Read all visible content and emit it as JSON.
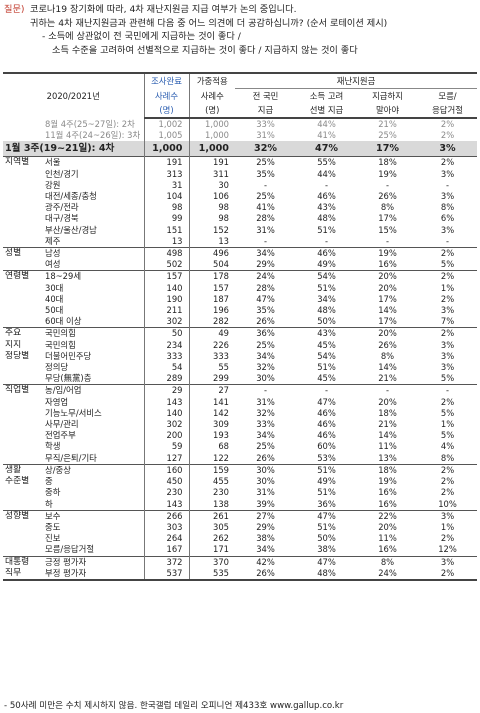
{
  "question": {
    "label": "질문)",
    "line1": "코로나19 장기화에 따라, 4차 재난지원금 지급 여부가 논의 중입니다.",
    "line2": "귀하는 4차 재난지원금과 관련해 다음 중 어느 의견에 더 공감하십니까? (순서 로테이션 제시)",
    "opt1": "- 소득에 상관없이 전 국민에게 지급하는 것이 좋다 /",
    "opt2": "소득 수준을 고려하여 선별적으로 지급하는 것이 좋다  /  지급하지 않는 것이 좋다"
  },
  "header": {
    "title": "2020/2021년",
    "col_n1": [
      "조사완료",
      "사례수",
      "(명)"
    ],
    "col_n2": [
      "가중적용",
      "사례수",
      "(명)"
    ],
    "group": "재난지원금",
    "col_all": [
      "전 국민",
      "지급"
    ],
    "col_sel": [
      "소득 고려",
      "선별 지급"
    ],
    "col_none": [
      "지급하지",
      "말아야"
    ],
    "col_dk": [
      "모름/",
      "응답거절"
    ]
  },
  "rows": [
    {
      "g": "",
      "s": "8월 4주(25~27일): 2차",
      "n1": "1,002",
      "n2": "1,000",
      "a": "33%",
      "b": "44%",
      "c": "21%",
      "d": "2%",
      "cls": "gray"
    },
    {
      "g": "",
      "s": "11월 4주(24~26일): 3차",
      "n1": "1,005",
      "n2": "1,000",
      "a": "31%",
      "b": "41%",
      "c": "25%",
      "d": "2%",
      "cls": "gray"
    },
    {
      "g": "1월 3주(19~21일): 4차",
      "s": "",
      "n1": "1,000",
      "n2": "1,000",
      "a": "32%",
      "b": "47%",
      "c": "17%",
      "d": "3%",
      "cls": "hl"
    },
    {
      "g": "지역별",
      "s": "서울",
      "n1": "191",
      "n2": "191",
      "a": "25%",
      "b": "55%",
      "c": "18%",
      "d": "2%",
      "cls": "sep"
    },
    {
      "g": "",
      "s": "인천/경기",
      "n1": "313",
      "n2": "311",
      "a": "35%",
      "b": "44%",
      "c": "19%",
      "d": "3%"
    },
    {
      "g": "",
      "s": "강원",
      "n1": "31",
      "n2": "30",
      "a": "-",
      "b": "-",
      "c": "-",
      "d": "-"
    },
    {
      "g": "",
      "s": "대전/세종/충청",
      "n1": "104",
      "n2": "106",
      "a": "25%",
      "b": "46%",
      "c": "26%",
      "d": "3%"
    },
    {
      "g": "",
      "s": "광주/전라",
      "n1": "98",
      "n2": "98",
      "a": "41%",
      "b": "43%",
      "c": "8%",
      "d": "8%"
    },
    {
      "g": "",
      "s": "대구/경북",
      "n1": "99",
      "n2": "98",
      "a": "28%",
      "b": "48%",
      "c": "17%",
      "d": "6%"
    },
    {
      "g": "",
      "s": "부산/울산/경남",
      "n1": "151",
      "n2": "152",
      "a": "31%",
      "b": "51%",
      "c": "15%",
      "d": "3%"
    },
    {
      "g": "",
      "s": "제주",
      "n1": "13",
      "n2": "13",
      "a": "-",
      "b": "-",
      "c": "-",
      "d": "-"
    },
    {
      "g": "성별",
      "s": "남성",
      "n1": "498",
      "n2": "496",
      "a": "34%",
      "b": "46%",
      "c": "19%",
      "d": "2%",
      "cls": "sep"
    },
    {
      "g": "",
      "s": "여성",
      "n1": "502",
      "n2": "504",
      "a": "29%",
      "b": "49%",
      "c": "16%",
      "d": "5%"
    },
    {
      "g": "연령별",
      "s": "18~29세",
      "n1": "157",
      "n2": "178",
      "a": "24%",
      "b": "54%",
      "c": "20%",
      "d": "2%",
      "cls": "sep"
    },
    {
      "g": "",
      "s": "30대",
      "n1": "140",
      "n2": "157",
      "a": "28%",
      "b": "51%",
      "c": "20%",
      "d": "1%"
    },
    {
      "g": "",
      "s": "40대",
      "n1": "190",
      "n2": "187",
      "a": "47%",
      "b": "34%",
      "c": "17%",
      "d": "2%"
    },
    {
      "g": "",
      "s": "50대",
      "n1": "211",
      "n2": "196",
      "a": "35%",
      "b": "48%",
      "c": "14%",
      "d": "3%"
    },
    {
      "g": "",
      "s": "60대 이상",
      "n1": "302",
      "n2": "282",
      "a": "26%",
      "b": "50%",
      "c": "17%",
      "d": "7%"
    },
    {
      "g": "주요",
      "s": "국민의힘",
      "n1": "50",
      "n2": "49",
      "a": "36%",
      "b": "43%",
      "c": "20%",
      "d": "2%",
      "cls": "sep"
    },
    {
      "g": "지지",
      "s": "국민의힘",
      "n1": "234",
      "n2": "226",
      "a": "25%",
      "b": "45%",
      "c": "26%",
      "d": "3%"
    },
    {
      "g": "정당별",
      "s": "더불어민주당",
      "n1": "333",
      "n2": "333",
      "a": "34%",
      "b": "54%",
      "c": "8%",
      "d": "3%"
    },
    {
      "g": "",
      "s": "정의당",
      "n1": "54",
      "n2": "55",
      "a": "32%",
      "b": "51%",
      "c": "14%",
      "d": "3%"
    },
    {
      "g": "",
      "s": "무당(無黨)층",
      "n1": "289",
      "n2": "299",
      "a": "30%",
      "b": "45%",
      "c": "21%",
      "d": "5%"
    },
    {
      "g": "직업별",
      "s": "농/임/어업",
      "n1": "29",
      "n2": "27",
      "a": "-",
      "b": "-",
      "c": "-",
      "d": "-",
      "cls": "sep"
    },
    {
      "g": "",
      "s": "자영업",
      "n1": "143",
      "n2": "141",
      "a": "31%",
      "b": "47%",
      "c": "20%",
      "d": "2%"
    },
    {
      "g": "",
      "s": "기능노무/서비스",
      "n1": "140",
      "n2": "142",
      "a": "32%",
      "b": "46%",
      "c": "18%",
      "d": "5%"
    },
    {
      "g": "",
      "s": "사무/관리",
      "n1": "302",
      "n2": "309",
      "a": "33%",
      "b": "46%",
      "c": "21%",
      "d": "1%"
    },
    {
      "g": "",
      "s": "전업주부",
      "n1": "200",
      "n2": "193",
      "a": "34%",
      "b": "46%",
      "c": "14%",
      "d": "5%"
    },
    {
      "g": "",
      "s": "학생",
      "n1": "59",
      "n2": "68",
      "a": "25%",
      "b": "60%",
      "c": "11%",
      "d": "4%"
    },
    {
      "g": "",
      "s": "무직/은퇴/기타",
      "n1": "127",
      "n2": "122",
      "a": "26%",
      "b": "53%",
      "c": "13%",
      "d": "8%"
    },
    {
      "g": "생활",
      "s": "상/중상",
      "n1": "160",
      "n2": "159",
      "a": "30%",
      "b": "51%",
      "c": "18%",
      "d": "2%",
      "cls": "sep"
    },
    {
      "g": "수준별",
      "s": "중",
      "n1": "450",
      "n2": "455",
      "a": "30%",
      "b": "49%",
      "c": "19%",
      "d": "2%"
    },
    {
      "g": "",
      "s": "중하",
      "n1": "230",
      "n2": "230",
      "a": "31%",
      "b": "51%",
      "c": "16%",
      "d": "2%"
    },
    {
      "g": "",
      "s": "하",
      "n1": "143",
      "n2": "138",
      "a": "39%",
      "b": "36%",
      "c": "16%",
      "d": "10%"
    },
    {
      "g": "성향별",
      "s": "보수",
      "n1": "266",
      "n2": "261",
      "a": "27%",
      "b": "47%",
      "c": "22%",
      "d": "3%",
      "cls": "sep"
    },
    {
      "g": "",
      "s": "중도",
      "n1": "303",
      "n2": "305",
      "a": "29%",
      "b": "51%",
      "c": "20%",
      "d": "1%"
    },
    {
      "g": "",
      "s": "진보",
      "n1": "264",
      "n2": "262",
      "a": "38%",
      "b": "50%",
      "c": "11%",
      "d": "2%"
    },
    {
      "g": "",
      "s": "모름/응답거절",
      "n1": "167",
      "n2": "171",
      "a": "34%",
      "b": "38%",
      "c": "16%",
      "d": "12%"
    },
    {
      "g": "대통령",
      "s": "긍정 평가자",
      "n1": "372",
      "n2": "370",
      "a": "42%",
      "b": "47%",
      "c": "8%",
      "d": "3%",
      "cls": "sep"
    },
    {
      "g": "직무",
      "s": "부정 평가자",
      "n1": "537",
      "n2": "535",
      "a": "26%",
      "b": "48%",
      "c": "24%",
      "d": "2%"
    }
  ],
  "footer": "- 50사례 미만은 수치 제시하지 않음. 한국갤럽 데일리 오피니언 제433호 www.gallup.co.kr"
}
